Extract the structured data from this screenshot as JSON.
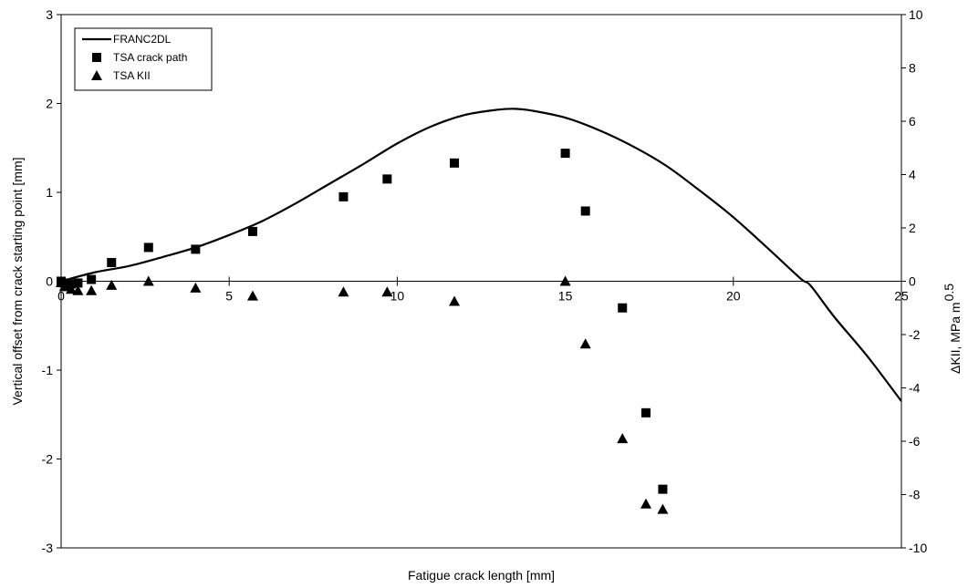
{
  "chart_data": {
    "type": "scatter",
    "xlabel": "Fatigue crack length [mm]",
    "ylabel": "Vertical offset from crack starting point [mm]",
    "y2label": "ΔKII, MPa m",
    "y2label_sup": "0.5",
    "xlim": [
      0,
      25
    ],
    "ylim": [
      -3,
      3
    ],
    "y2lim": [
      -10,
      10
    ],
    "x_ticks": [
      "0",
      "5",
      "10",
      "15",
      "20",
      "25"
    ],
    "y_ticks": [
      "3",
      "2",
      "1",
      "0",
      "-1",
      "-2",
      "-3"
    ],
    "y2_ticks": [
      "10",
      "8",
      "6",
      "4",
      "2",
      "0",
      "-2",
      "-4",
      "-6",
      "-8",
      "-10"
    ],
    "legend_position": "top-left",
    "series": [
      {
        "name": "FRANC2DL",
        "kind": "line",
        "axis": "left",
        "color": "#000000",
        "x": [
          0,
          1,
          2,
          3,
          4,
          5,
          6,
          7,
          8,
          9,
          10,
          11,
          12,
          13,
          13.5,
          14,
          15,
          16,
          17,
          18,
          19,
          20,
          21,
          22,
          22.3,
          23,
          24,
          25
        ],
        "y": [
          0,
          0.1,
          0.17,
          0.27,
          0.38,
          0.52,
          0.68,
          0.88,
          1.1,
          1.32,
          1.55,
          1.74,
          1.87,
          1.93,
          1.94,
          1.92,
          1.84,
          1.7,
          1.52,
          1.3,
          1.02,
          0.72,
          0.38,
          0.03,
          -0.05,
          -0.4,
          -0.85,
          -1.35
        ]
      },
      {
        "name": "TSA crack path",
        "kind": "marker",
        "marker": "square",
        "axis": "left",
        "color": "#000000",
        "x": [
          0,
          0.1,
          0.3,
          0.5,
          0.9,
          1.5,
          2.6,
          4.0,
          5.7,
          8.4,
          9.7,
          11.7,
          15.0,
          15.6,
          16.7,
          17.4,
          17.9
        ],
        "y": [
          0,
          -0.02,
          -0.03,
          -0.02,
          0.02,
          0.21,
          0.38,
          0.36,
          0.56,
          0.95,
          1.15,
          1.33,
          1.44,
          0.79,
          -0.3,
          -1.48,
          -2.34
        ]
      },
      {
        "name": "TSA KII",
        "kind": "marker",
        "marker": "triangle",
        "axis": "right",
        "color": "#000000",
        "x": [
          0,
          0.1,
          0.3,
          0.5,
          0.9,
          1.5,
          2.6,
          4.0,
          5.7,
          8.4,
          9.7,
          11.7,
          15.0,
          15.6,
          16.7,
          17.4,
          17.9
        ],
        "y": [
          -0.05,
          -0.2,
          -0.3,
          -0.35,
          -0.35,
          -0.15,
          0,
          -0.25,
          -0.55,
          -0.4,
          -0.4,
          -0.75,
          0,
          -2.35,
          -5.9,
          -8.35,
          -8.55
        ]
      }
    ]
  }
}
